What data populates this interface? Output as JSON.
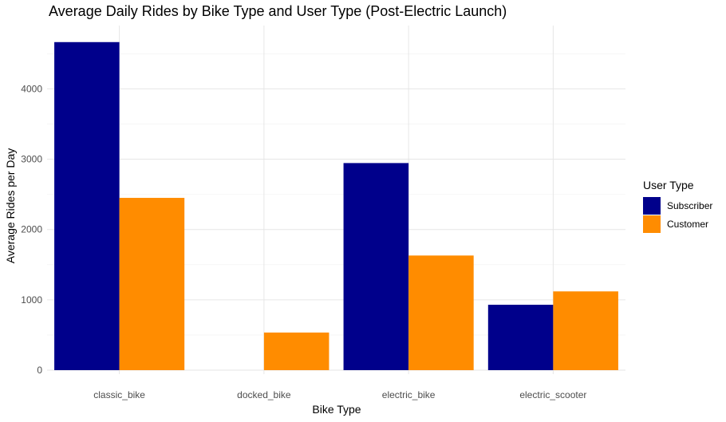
{
  "chart_data": {
    "type": "bar",
    "title": "Average Daily Rides by Bike Type and User Type (Post-Electric Launch)",
    "xlabel": "Bike Type",
    "ylabel": "Average Rides per Day",
    "categories": [
      "classic_bike",
      "docked_bike",
      "electric_bike",
      "electric_scooter"
    ],
    "series": [
      {
        "name": "Subscriber",
        "color": "#00008B",
        "values": [
          4665,
          0,
          2945,
          930
        ]
      },
      {
        "name": "Customer",
        "color": "#FF8C00",
        "values": [
          2450,
          535,
          1630,
          1120
        ]
      }
    ],
    "ylim": [
      0,
      4900
    ],
    "yticks": [
      0,
      1000,
      2000,
      3000,
      4000
    ],
    "grid": true,
    "legend": {
      "title": "User Type",
      "position": "right"
    }
  }
}
